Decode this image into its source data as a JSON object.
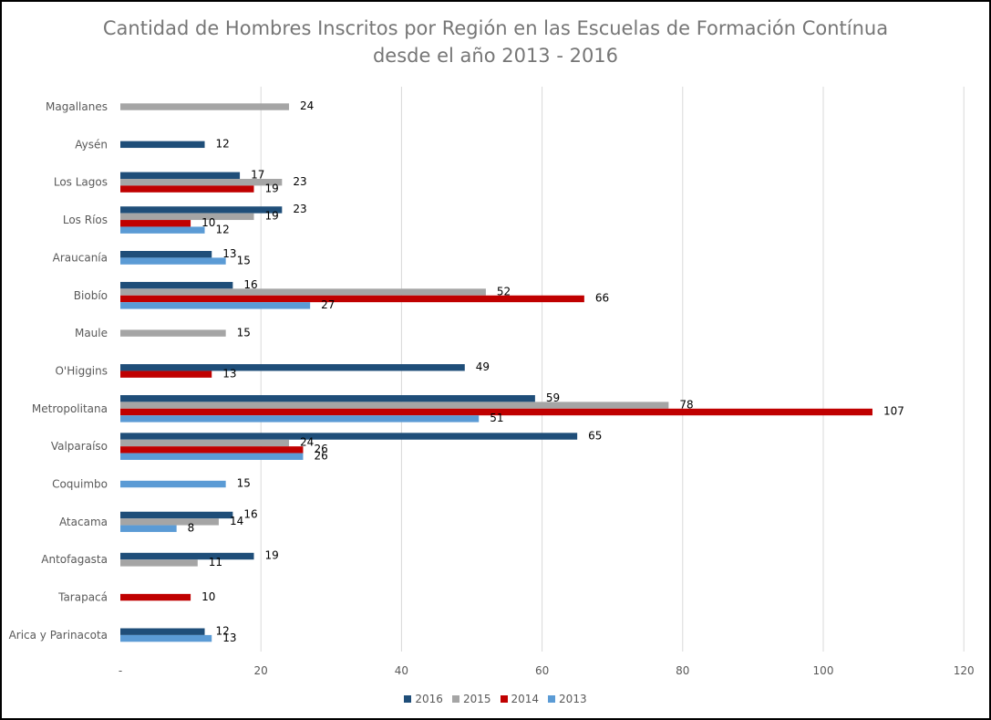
{
  "chart_data": {
    "type": "bar",
    "orientation": "horizontal",
    "title_line1": "Cantidad de Hombres Inscritos por Región en las Escuelas de Formación Contínua",
    "title_line2": "desde el año 2013 - 2016",
    "categories": [
      "Magallanes",
      "Aysén",
      "Los Lagos",
      "Los Ríos",
      "Araucanía",
      "Biobío",
      "Maule",
      "O'Higgins",
      "Metropolitana",
      "Valparaíso",
      "Coquimbo",
      "Atacama",
      "Antofagasta",
      "Tarapacá",
      "Arica y Parinacota"
    ],
    "series": [
      {
        "name": "2016",
        "color": "#1f4e79",
        "values": [
          null,
          12,
          17,
          23,
          13,
          16,
          null,
          49,
          59,
          65,
          null,
          16,
          19,
          null,
          12
        ]
      },
      {
        "name": "2015",
        "color": "#a5a5a5",
        "values": [
          24,
          null,
          23,
          19,
          null,
          52,
          15,
          null,
          78,
          24,
          null,
          14,
          11,
          null,
          null
        ]
      },
      {
        "name": "2014",
        "color": "#c00000",
        "values": [
          null,
          null,
          19,
          10,
          null,
          66,
          null,
          13,
          107,
          26,
          null,
          null,
          null,
          10,
          null
        ]
      },
      {
        "name": "2013",
        "color": "#5b9bd5",
        "values": [
          null,
          null,
          null,
          12,
          15,
          27,
          null,
          null,
          51,
          26,
          15,
          8,
          null,
          null,
          13
        ]
      }
    ],
    "xlim": [
      0,
      120
    ],
    "x_ticks": [
      "-",
      "20",
      "40",
      "60",
      "80",
      "100",
      "120"
    ],
    "grid": "vertical",
    "legend_position": "bottom"
  }
}
